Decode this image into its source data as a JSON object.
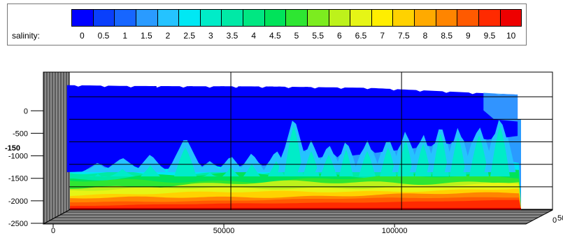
{
  "legend": {
    "title": "salinity:",
    "ticks": [
      "0",
      "0.5",
      "1",
      "1.5",
      "2",
      "2.5",
      "3",
      "3.5",
      "4",
      "4.5",
      "5",
      "5.5",
      "6",
      "6.5",
      "7",
      "7.5",
      "8",
      "8.5",
      "9",
      "9.5",
      "10"
    ],
    "colors": [
      "#0000ff",
      "#0a3ffb",
      "#1766ff",
      "#2a9bff",
      "#25c3ff",
      "#00e8f4",
      "#00ecc8",
      "#00e9a6",
      "#00e782",
      "#00e35a",
      "#2ee632",
      "#7cec1f",
      "#bdf21b",
      "#e6f516",
      "#ffee00",
      "#ffd200",
      "#ffaa00",
      "#ff8500",
      "#ff5a00",
      "#ff2a00",
      "#ee0000"
    ]
  },
  "chart_data": {
    "type": "heatmap",
    "title": "",
    "xlabel": "",
    "ylabel": "",
    "variable": "salinity",
    "xlim": [
      0,
      135000
    ],
    "ylim": [
      -2500,
      300
    ],
    "x_ticks": [
      "0",
      "50000",
      "100000"
    ],
    "x_tick_values": [
      0,
      50000,
      100000
    ],
    "y_ticks": [
      "0",
      "-500",
      "-1000",
      "-1500",
      "-2000",
      "-2500"
    ],
    "y_tick_values": [
      0,
      -500,
      -1000,
      -1500,
      -2000,
      -2500
    ],
    "partial_labels": [
      "-150"
    ],
    "color_scale": {
      "min": 0,
      "max": 10,
      "step": 0.5
    },
    "surface_elevation": {
      "x": [
        2000,
        20000,
        60000,
        90000,
        110000,
        130000,
        134000
      ],
      "values": [
        260,
        240,
        230,
        200,
        130,
        60,
        50
      ]
    },
    "layers": [
      {
        "salinity": "0 - 1",
        "depth_range": "surface to about -1000 / -1500"
      },
      {
        "salinity": "1 - 4",
        "depth_range": "about -1500 to -1800"
      },
      {
        "salinity": "4 - 7",
        "depth_range": "about -1800 to -2100"
      },
      {
        "salinity": "7 - 10",
        "depth_range": "about -2100 to -2500"
      }
    ],
    "grid": true
  }
}
